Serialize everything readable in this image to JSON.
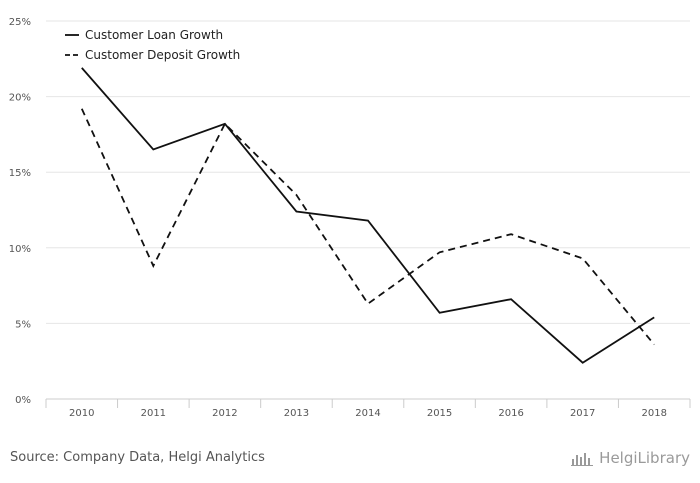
{
  "chart_data": {
    "type": "line",
    "categories": [
      "2010",
      "2011",
      "2012",
      "2013",
      "2014",
      "2015",
      "2016",
      "2017",
      "2018"
    ],
    "series": [
      {
        "name": "Customer Loan Growth",
        "style": "solid",
        "color": "#111111",
        "values": [
          21.9,
          16.5,
          18.2,
          12.4,
          11.8,
          5.7,
          6.6,
          2.4,
          5.4
        ]
      },
      {
        "name": "Customer Deposit Growth",
        "style": "dashed",
        "color": "#111111",
        "values": [
          19.2,
          8.8,
          18.2,
          13.5,
          6.3,
          9.7,
          10.9,
          9.3,
          3.6
        ]
      }
    ],
    "y_ticks": [
      "0%",
      "5%",
      "10%",
      "15%",
      "20%",
      "25%"
    ],
    "ylim": [
      0,
      25
    ],
    "grid": true,
    "legend_position": "top-left"
  },
  "footer": {
    "source": "Source: Company Data, Helgi Analytics",
    "brand": "HelgiLibrary"
  },
  "colors": {
    "grid": "#e6e6e6",
    "axis": "#cccccc",
    "text": "#555555"
  }
}
